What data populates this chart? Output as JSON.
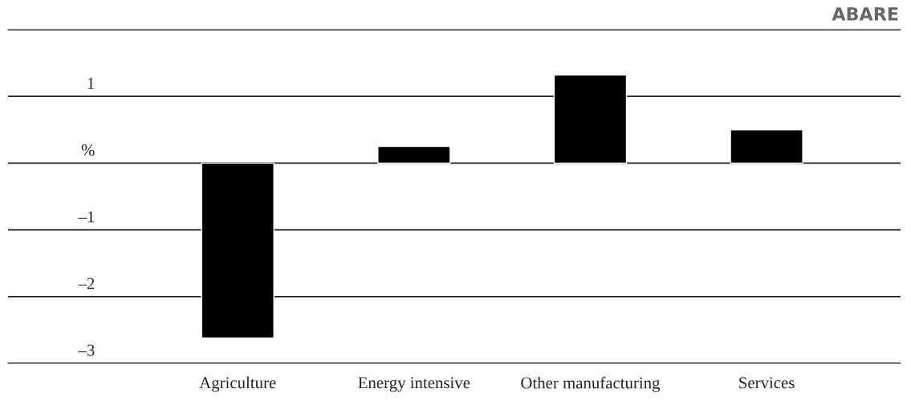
{
  "chart_data": {
    "type": "bar",
    "categories": [
      "Agriculture",
      "Energy intensive",
      "Other manufacturing",
      "Services"
    ],
    "values": [
      -2.62,
      0.25,
      1.32,
      0.5
    ],
    "color": "#000000",
    "ylim": [
      -3,
      2
    ],
    "yticks": [
      {
        "value": -3,
        "label": "–3"
      },
      {
        "value": -2,
        "label": "–2"
      },
      {
        "value": -1,
        "label": "–1"
      },
      {
        "value": 0,
        "label": "%"
      },
      1,
      {
        "value": 2,
        "label": null
      }
    ],
    "grid": "y",
    "annotations": [
      "ABARE"
    ]
  }
}
